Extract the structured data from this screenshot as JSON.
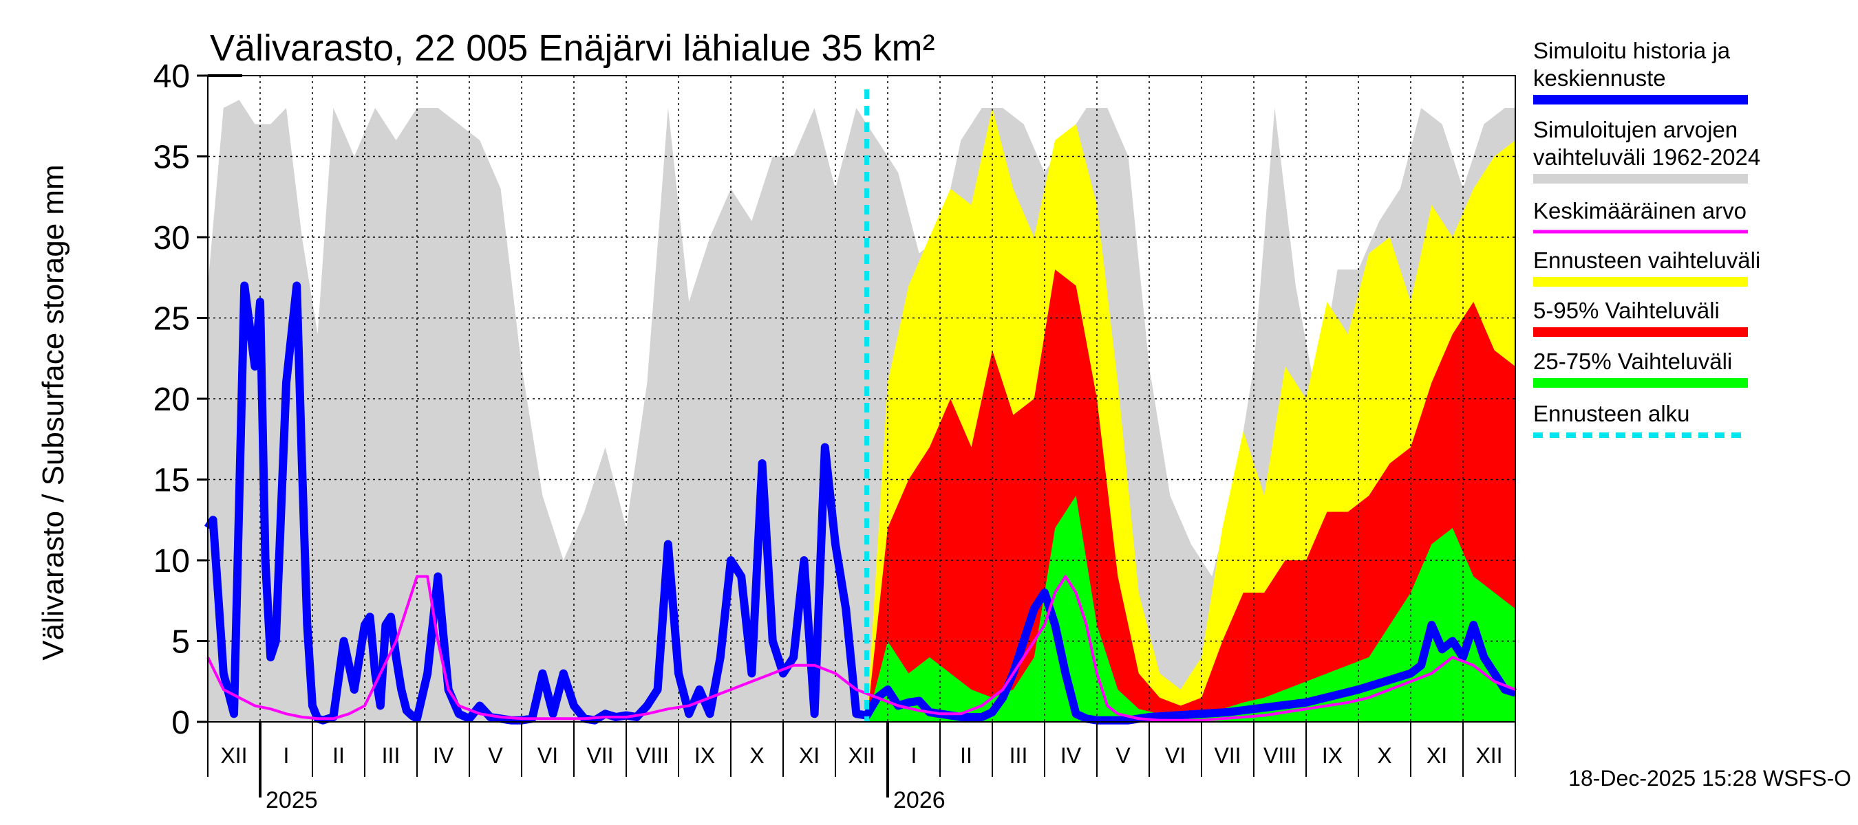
{
  "chart_data": {
    "type": "area",
    "title": "Välivarasto, 22 005 Enäjärvi lähialue 35 km²",
    "ylabel": "Välivarasto / Subsurface storage  mm",
    "xlabel": "",
    "ylim": [
      0,
      40
    ],
    "yticks": [
      0,
      5,
      10,
      15,
      20,
      25,
      30,
      35,
      40
    ],
    "months": [
      "XII",
      "I",
      "II",
      "III",
      "IV",
      "V",
      "VI",
      "VII",
      "VIII",
      "IX",
      "X",
      "XI",
      "XII",
      "I",
      "II",
      "III",
      "IV",
      "V",
      "VI",
      "VII",
      "VIII",
      "IX",
      "X",
      "XI",
      "XII"
    ],
    "years": [
      {
        "label": "2025",
        "month_index": 1
      },
      {
        "label": "2026",
        "month_index": 13
      }
    ],
    "x_units": "months since 2024-11-29",
    "xlim": [
      0,
      25
    ],
    "forecast_start": 12.6,
    "footer": "18-Dec-2025 15:28 WSFS-O",
    "legend": [
      {
        "label": "Simuloitu historia ja\nkeskiennuste",
        "color": "#0000ff",
        "style": "solid"
      },
      {
        "label": "Simuloitujen arvojen\nvaihteluväli 1962-2024",
        "color": "#d3d3d3",
        "style": "solid"
      },
      {
        "label": "Keskimääräinen arvo",
        "color": "#ff00ff",
        "style": "thin"
      },
      {
        "label": "Ennusteen vaihteluväli",
        "color": "#ffff00",
        "style": "solid"
      },
      {
        "label": "5-95% Vaihteluväli",
        "color": "#ff0000",
        "style": "solid"
      },
      {
        "label": "25-75% Vaihteluväli",
        "color": "#00ff00",
        "style": "solid"
      },
      {
        "label": "Ennusteen alku",
        "color": "#00e5ee",
        "style": "dashed"
      }
    ],
    "series": [
      {
        "name": "Simuloitujen arvojen vaihteluväli 1962-2024",
        "color": "#d3d3d3",
        "x": [
          0,
          0.3,
          0.6,
          0.9,
          1.2,
          1.5,
          1.8,
          2.1,
          2.4,
          2.8,
          3.2,
          3.6,
          4.0,
          4.4,
          4.8,
          5.2,
          5.6,
          6.0,
          6.4,
          6.8,
          7.2,
          7.6,
          8.0,
          8.4,
          8.8,
          9.2,
          9.6,
          10.0,
          10.4,
          10.8,
          11.2,
          11.6,
          12.0,
          12.4,
          12.8,
          13.2,
          13.6,
          14.0,
          14.4,
          14.8,
          15.2,
          15.6,
          16.0,
          16.4,
          16.8,
          17.2,
          17.6,
          18.0,
          18.4,
          18.8,
          19.2,
          19.6,
          20.0,
          20.4,
          20.8,
          21.2,
          21.6,
          22.0,
          22.4,
          22.8,
          23.2,
          23.6,
          24.0,
          24.4,
          24.8,
          25.0
        ],
        "values": [
          27,
          38,
          38.5,
          37,
          37,
          38,
          30,
          24,
          38,
          35,
          38,
          36,
          38,
          38,
          37,
          36,
          33,
          22,
          14,
          10,
          13,
          17,
          12,
          21,
          38,
          26,
          30,
          33,
          31,
          35,
          35,
          38,
          33,
          38,
          36,
          34,
          29,
          30,
          36,
          38,
          38,
          37,
          34,
          36,
          38,
          38,
          35,
          22,
          14,
          11,
          9,
          14,
          22,
          38,
          27,
          20,
          28,
          28,
          31,
          33,
          38,
          37,
          33,
          37,
          38,
          38
        ]
      },
      {
        "name": "Ennusteen vaihteluväli",
        "color": "#ffff00",
        "x": [
          12.6,
          13.0,
          13.4,
          13.8,
          14.2,
          14.6,
          15.0,
          15.4,
          15.8,
          16.2,
          16.6,
          17.0,
          17.4,
          17.8,
          18.2,
          18.6,
          19.0,
          19.4,
          19.8,
          20.2,
          20.6,
          21.0,
          21.4,
          21.8,
          22.2,
          22.6,
          23.0,
          23.4,
          23.8,
          24.2,
          24.6,
          25.0
        ],
        "values": [
          0,
          21,
          27,
          30,
          33,
          32,
          38,
          33,
          30,
          36,
          37,
          32,
          21,
          8,
          3,
          2,
          4,
          12,
          18,
          14,
          22,
          20,
          26,
          24,
          29,
          30,
          26,
          32,
          30,
          33,
          35,
          36
        ]
      },
      {
        "name": "5-95% Vaihteluväli",
        "color": "#ff0000",
        "x": [
          12.6,
          13.0,
          13.4,
          13.8,
          14.2,
          14.6,
          15.0,
          15.4,
          15.8,
          16.2,
          16.6,
          17.0,
          17.4,
          17.8,
          18.2,
          18.6,
          19.0,
          19.4,
          19.8,
          20.2,
          20.6,
          21.0,
          21.4,
          21.8,
          22.2,
          22.6,
          23.0,
          23.4,
          23.8,
          24.2,
          24.6,
          25.0
        ],
        "values": [
          0,
          12,
          15,
          17,
          20,
          17,
          23,
          19,
          20,
          28,
          27,
          20,
          9,
          3,
          1.5,
          1,
          1.5,
          5,
          8,
          8,
          10,
          10,
          13,
          13,
          14,
          16,
          17,
          21,
          24,
          26,
          23,
          22
        ]
      },
      {
        "name": "25-75% Vaihteluväli",
        "color": "#00ff00",
        "x": [
          12.6,
          13.0,
          13.4,
          13.8,
          14.2,
          14.6,
          15.0,
          15.4,
          15.8,
          16.2,
          16.6,
          17.0,
          17.4,
          17.8,
          18.2,
          18.6,
          19.0,
          19.4,
          19.8,
          20.2,
          20.6,
          21.0,
          21.4,
          21.8,
          22.2,
          22.6,
          23.0,
          23.4,
          23.8,
          24.2,
          24.6,
          25.0
        ],
        "values": [
          0,
          5,
          3,
          4,
          3,
          2,
          1.5,
          2,
          4,
          12,
          14,
          6,
          2,
          0.8,
          0.5,
          0.4,
          0.5,
          0.8,
          1.2,
          1.5,
          2,
          2.5,
          3,
          3.5,
          4,
          6,
          8,
          11,
          12,
          9,
          8,
          7
        ]
      },
      {
        "name": "Simuloitu historia ja keskiennuste",
        "color": "#0000ff",
        "x": [
          0,
          0.1,
          0.3,
          0.5,
          0.7,
          0.9,
          1.0,
          1.1,
          1.2,
          1.3,
          1.5,
          1.7,
          1.8,
          1.9,
          2.0,
          2.1,
          2.2,
          2.4,
          2.6,
          2.8,
          3.0,
          3.1,
          3.2,
          3.3,
          3.4,
          3.5,
          3.6,
          3.7,
          3.8,
          3.9,
          4.0,
          4.2,
          4.4,
          4.6,
          4.8,
          5.0,
          5.2,
          5.4,
          5.6,
          5.8,
          6.0,
          6.2,
          6.4,
          6.6,
          6.8,
          7.0,
          7.2,
          7.4,
          7.6,
          7.8,
          8.0,
          8.2,
          8.4,
          8.6,
          8.8,
          9.0,
          9.2,
          9.4,
          9.6,
          9.8,
          10.0,
          10.2,
          10.4,
          10.6,
          10.8,
          11.0,
          11.2,
          11.4,
          11.6,
          11.8,
          12.0,
          12.2,
          12.4,
          12.6,
          12.8,
          13.0,
          13.2,
          13.4,
          13.6,
          13.8,
          14.0,
          14.2,
          14.4,
          14.6,
          14.8,
          15.0,
          15.2,
          15.4,
          15.6,
          15.8,
          16.0,
          16.2,
          16.4,
          16.6,
          16.8,
          17.0,
          17.2,
          17.4,
          17.6,
          17.8,
          18.0,
          18.5,
          19.0,
          19.5,
          20.0,
          20.5,
          21.0,
          21.5,
          22.0,
          22.5,
          23.0,
          23.2,
          23.4,
          23.6,
          23.8,
          24.0,
          24.2,
          24.4,
          24.6,
          24.8,
          25.0
        ],
        "values": [
          12,
          12.5,
          3,
          0.5,
          27,
          22,
          26,
          10,
          4,
          5,
          21,
          27,
          16,
          6,
          1,
          0.2,
          0.1,
          0.3,
          5,
          2,
          6,
          6.5,
          3,
          1,
          6,
          6.5,
          4,
          2,
          0.7,
          0.4,
          0.2,
          3,
          9,
          2,
          0.5,
          0.2,
          1,
          0.3,
          0.2,
          0.1,
          0.1,
          0.2,
          3,
          0.5,
          3,
          1,
          0.2,
          0.1,
          0.5,
          0.3,
          0.4,
          0.3,
          1,
          2,
          11,
          3,
          0.5,
          2,
          0.5,
          4,
          10,
          9,
          3,
          16,
          5,
          3,
          4,
          10,
          0.5,
          17,
          11,
          7,
          0.5,
          0.4,
          1.5,
          2,
          1,
          1.2,
          1.3,
          0.6,
          0.5,
          0.4,
          0.3,
          0.3,
          0.3,
          0.6,
          1.5,
          3,
          5,
          7,
          8,
          6,
          3,
          0.5,
          0.2,
          0.1,
          0.1,
          0.1,
          0.1,
          0.2,
          0.3,
          0.4,
          0.5,
          0.6,
          0.8,
          1,
          1.2,
          1.6,
          2,
          2.5,
          3,
          3.5,
          6,
          4.5,
          5,
          4,
          6,
          4,
          3,
          2,
          1.8
        ]
      },
      {
        "name": "Keskimääräinen arvo",
        "color": "#ff00ff",
        "x": [
          0,
          0.3,
          0.6,
          0.9,
          1.2,
          1.5,
          1.8,
          2.1,
          2.4,
          2.7,
          3.0,
          3.3,
          3.6,
          3.8,
          4.0,
          4.2,
          4.4,
          4.6,
          4.8,
          5.2,
          5.6,
          6.0,
          6.4,
          6.8,
          7.2,
          7.6,
          8.0,
          8.4,
          8.8,
          9.2,
          9.6,
          10.0,
          10.4,
          10.8,
          11.2,
          11.6,
          12.0,
          12.4,
          12.8,
          13.2,
          13.6,
          14.0,
          14.4,
          14.8,
          15.2,
          15.6,
          16.0,
          16.2,
          16.4,
          16.6,
          16.8,
          17.0,
          17.2,
          17.4,
          17.8,
          18.2,
          18.6,
          19.0,
          19.4,
          19.8,
          20.2,
          20.6,
          21.0,
          21.4,
          21.8,
          22.2,
          22.6,
          23.0,
          23.4,
          23.8,
          24.2,
          24.6,
          25.0
        ],
        "values": [
          4,
          2,
          1.5,
          1,
          0.8,
          0.5,
          0.3,
          0.2,
          0.2,
          0.5,
          1,
          3,
          5,
          7,
          9,
          9,
          5,
          2,
          1,
          0.5,
          0.3,
          0.2,
          0.2,
          0.2,
          0.2,
          0.3,
          0.3,
          0.5,
          0.8,
          1,
          1.5,
          2,
          2.5,
          3,
          3.5,
          3.5,
          3,
          2,
          1.5,
          1,
          0.7,
          0.5,
          0.5,
          1,
          2,
          4,
          6,
          8,
          9,
          8,
          6,
          3,
          1,
          0.5,
          0.2,
          0.1,
          0.1,
          0.1,
          0.2,
          0.3,
          0.4,
          0.6,
          0.8,
          1,
          1.2,
          1.5,
          2,
          2.5,
          3,
          4,
          3.5,
          2.5,
          2
        ]
      }
    ]
  }
}
